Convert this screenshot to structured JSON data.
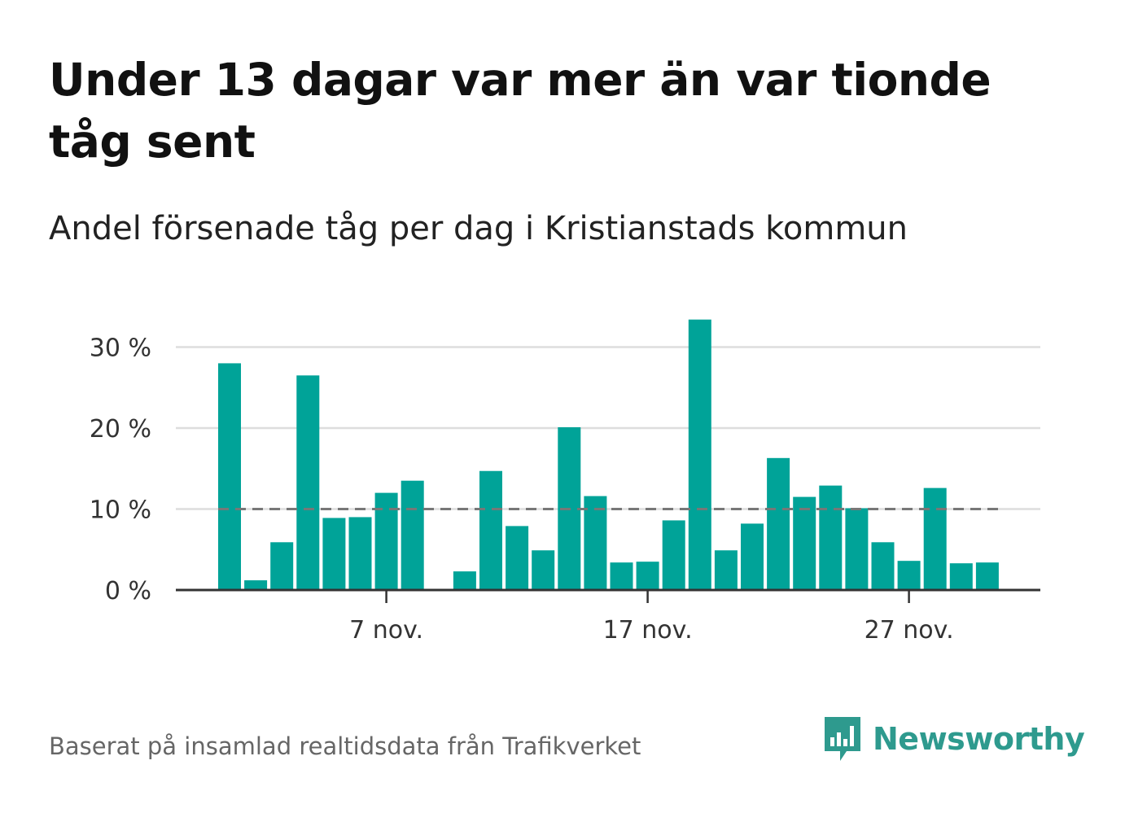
{
  "title": "Under 13 dagar var mer än var tionde tåg sent",
  "subtitle": "Andel försenade tåg per dag i Kristianstads kommun",
  "footer": "Baserat på insamlad realtidsdata från Trafikverket",
  "logo": {
    "text": "Newsworthy",
    "icon": "newsworthy-logo-icon"
  },
  "colors": {
    "bar": "#00a398",
    "reference_line": "#777777",
    "grid": "#dddddd",
    "axis": "#333333",
    "logo": "#2e9a8e"
  },
  "chart_data": {
    "type": "bar",
    "title": "Andel försenade tåg per dag i Kristianstads kommun",
    "x": [
      1,
      2,
      3,
      4,
      5,
      6,
      7,
      8,
      9,
      10,
      11,
      12,
      13,
      14,
      15,
      16,
      17,
      18,
      19,
      20,
      21,
      22,
      23,
      24,
      25,
      26,
      27,
      28,
      29,
      30
    ],
    "values": [
      28.0,
      1.2,
      5.9,
      26.5,
      8.9,
      9.0,
      12.0,
      13.5,
      null,
      2.3,
      14.7,
      7.9,
      4.9,
      20.1,
      11.6,
      3.4,
      3.5,
      8.6,
      33.4,
      4.9,
      8.2,
      16.3,
      11.5,
      12.9,
      10.1,
      5.9,
      3.6,
      12.6,
      3.3,
      3.4
    ],
    "xticks": [
      {
        "x": 7,
        "label": "7 nov."
      },
      {
        "x": 17,
        "label": "17 nov."
      },
      {
        "x": 27,
        "label": "27 nov."
      }
    ],
    "yticks": [
      {
        "value": 0,
        "label": "0 %"
      },
      {
        "value": 10,
        "label": "10 %"
      },
      {
        "value": 20,
        "label": "20 %"
      },
      {
        "value": 30,
        "label": "30 %"
      }
    ],
    "ylim": [
      0,
      30
    ],
    "reference_line": 10,
    "grid": true,
    "xlabel": "",
    "ylabel": ""
  }
}
